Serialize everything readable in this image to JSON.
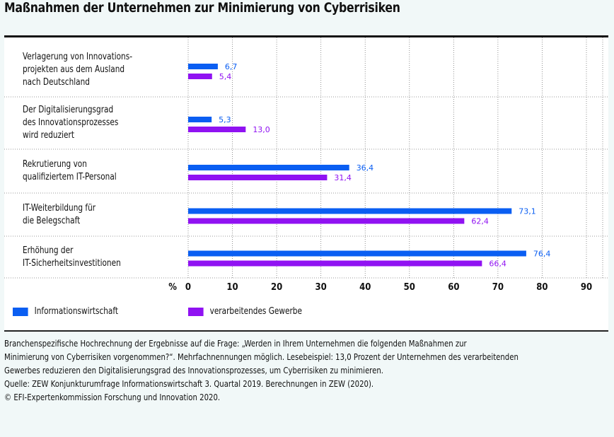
{
  "chart_data": {
    "type": "bar",
    "orientation": "horizontal",
    "title": "Maßnahmen der Unternehmen zur Minimierung von Cyberrisiken",
    "categories": [
      "Verlagerung von Innovations-\nprojekten aus dem Ausland\nnach Deutschland",
      "Der Digitalisierungsgrad\ndes Innovationsprozesses\nwird reduziert",
      "Rekrutierung von\nqualifiziertem IT-Personal",
      "IT-Weiterbildung für\ndie Belegschaft",
      "Erhöhung der\nIT-Sicherheitsinvestitionen"
    ],
    "series": [
      {
        "name": "Informationswirtschaft",
        "color": "#0a5ef2",
        "values": [
          6.7,
          5.3,
          36.4,
          73.1,
          76.4
        ],
        "labels": [
          "6,7",
          "5,3",
          "36,4",
          "73,1",
          "76,4"
        ]
      },
      {
        "name": "verarbeitendes Gewerbe",
        "color": "#9012f2",
        "values": [
          5.4,
          13.0,
          31.4,
          62.4,
          66.4
        ],
        "labels": [
          "5,4",
          "13,0",
          "31,4",
          "62,4",
          "66,4"
        ]
      }
    ],
    "xlabel": "%",
    "xlim": [
      0,
      90
    ],
    "xticks": [
      "0",
      "10",
      "20",
      "30",
      "40",
      "50",
      "60",
      "70",
      "80",
      "90"
    ],
    "grid": true,
    "legend": "bottom"
  },
  "notes": [
    "Branchenspezifische Hochrechnung der Ergebnisse auf die Frage: „Werden in Ihrem Unternehmen die folgenden Maßnahmen zur",
    "Minimierung von Cyberrisiken vorgenommen?“. Mehrfachnennungen möglich. Lesebeispiel: 13,0 Prozent der Unternehmen des verarbeitenden",
    "Gewerbes reduzieren den Digitalisierungsgrad des Innovationsprozesses, um Cyberrisiken zu minimieren.",
    "Quelle: ZEW Konjunkturumfrage Informationswirtschaft 3. Quartal 2019. Berechnungen in ZEW (2020).",
    "© EFI-Expertenkommission Forschung und Innovation 2020."
  ]
}
